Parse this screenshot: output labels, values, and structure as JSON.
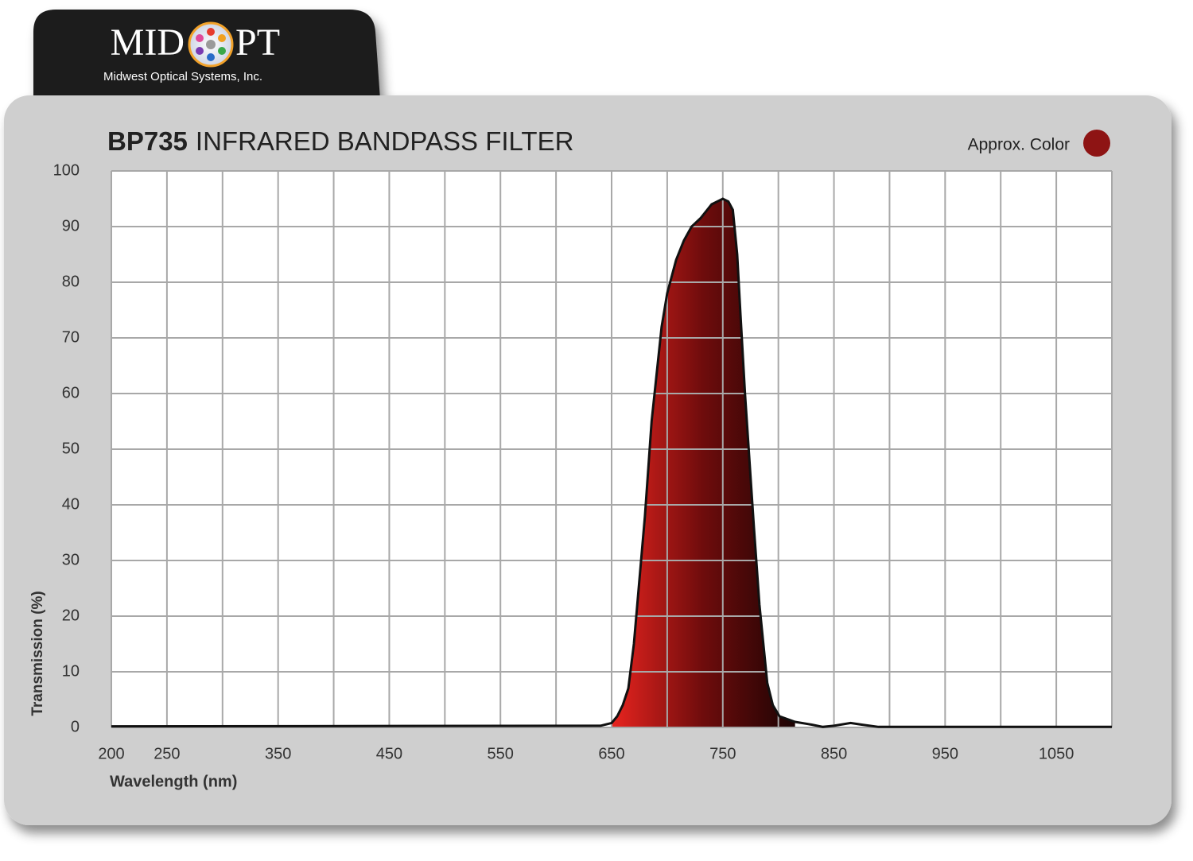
{
  "header": {
    "logo_left": "MID",
    "logo_right": "PT",
    "tagline": "Midwest Optical Systems, Inc."
  },
  "chart_data": {
    "type": "area",
    "title_code": "BP735",
    "title": "INFRARED BANDPASS FILTER",
    "legend_label": "Approx. Color",
    "approx_color": "#8e1414",
    "x_label": "Wavelength (nm)",
    "y_label": "Transmission (%)",
    "x": [
      200,
      640,
      650,
      655,
      660,
      665,
      670,
      680,
      686,
      695,
      700,
      708,
      715,
      722,
      730,
      740,
      750,
      755,
      759,
      763,
      766,
      770,
      773,
      778,
      783,
      787,
      790,
      795,
      801,
      815,
      830,
      840,
      850,
      865,
      875,
      890,
      1100
    ],
    "values": [
      0.2,
      0.3,
      0.8,
      2,
      4,
      7,
      15,
      38,
      55,
      72,
      78,
      84,
      87.5,
      90,
      91.5,
      94,
      95,
      94.5,
      93,
      85,
      74,
      60,
      51,
      36,
      22,
      14,
      8,
      4,
      2,
      1,
      0.5,
      0.1,
      0.3,
      0.8,
      0.5,
      0.1,
      0.1
    ],
    "fill_gradient": [
      "#e8241f",
      "#6e0c0c",
      "#1c0303"
    ],
    "line_color": "#111111",
    "xlim": [
      200,
      1100
    ],
    "ylim": [
      0,
      100
    ],
    "xticks": [
      200,
      250,
      350,
      450,
      550,
      650,
      750,
      850,
      950,
      1050
    ],
    "x_gridlines": [
      200,
      250,
      300,
      350,
      400,
      450,
      500,
      550,
      600,
      650,
      700,
      750,
      800,
      850,
      900,
      950,
      1000,
      1050,
      1100
    ],
    "yticks": [
      0,
      10,
      20,
      30,
      40,
      50,
      60,
      70,
      80,
      90,
      100
    ],
    "grid": true
  }
}
